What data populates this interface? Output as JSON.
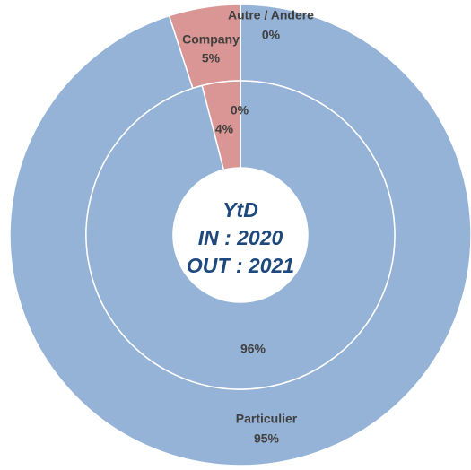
{
  "chart_data": {
    "type": "donut",
    "categories": [
      "Particulier",
      "Company",
      "Autre / Andere"
    ],
    "colors": [
      "#95b3d7",
      "#d99694",
      "#95b3d7"
    ],
    "center_text": [
      "YtD",
      "IN : 2020",
      "OUT : 2021"
    ],
    "series": [
      {
        "values": [
          95,
          5,
          0
        ],
        "value_labels": [
          "95%",
          "5%",
          "0%"
        ]
      },
      {
        "values": [
          96,
          4,
          0
        ],
        "value_labels": [
          "96%",
          "4%",
          "0%"
        ]
      }
    ]
  }
}
